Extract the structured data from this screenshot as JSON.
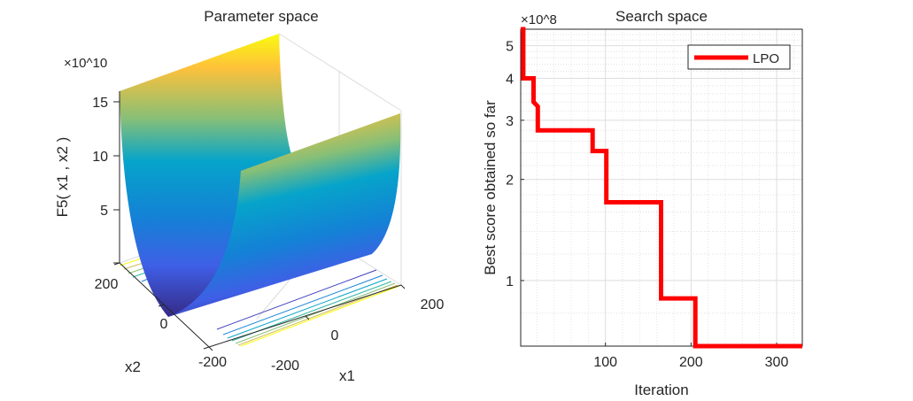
{
  "chart_data": [
    {
      "type": "surface",
      "title": "Parameter space",
      "xlabel": "x1",
      "ylabel": "x2",
      "zlabel": "F5( x1 , x2 )",
      "z_exponent": "×10^10",
      "x_ticks": [
        "-200",
        "0",
        "200"
      ],
      "y_ticks": [
        "200",
        "0",
        "-200"
      ],
      "z_ticks": [
        "15",
        "10",
        "5"
      ],
      "xlim": [
        -200,
        200
      ],
      "ylim": [
        -200,
        200
      ],
      "colormap": [
        "#352a87",
        "#0f5cdd",
        "#1481d6",
        "#06a4ca",
        "#2eb7a4",
        "#87bf77",
        "#d1bb59",
        "#fec13a",
        "#f9fb0e"
      ]
    },
    {
      "type": "line",
      "title": "Search space",
      "xlabel": "Iteration",
      "ylabel": "Best score obtained so far",
      "y_exponent": "×10^8",
      "yscale": "log",
      "xlim": [
        1,
        330
      ],
      "ylim": [
        0.638,
        5.6
      ],
      "x_ticks": [
        100,
        200,
        300
      ],
      "y_ticks": [
        1,
        2,
        3,
        4,
        5
      ],
      "grid": true,
      "legend_position": "top-right",
      "series": [
        {
          "name": "LPO",
          "color": "#ff0000",
          "x": [
            1,
            4,
            4,
            16,
            16,
            21,
            21,
            85,
            85,
            101,
            101,
            165,
            165,
            205,
            205,
            330
          ],
          "y": [
            5.6,
            5.6,
            4.0,
            4.0,
            3.4,
            3.3,
            2.8,
            2.8,
            2.43,
            2.43,
            1.71,
            1.71,
            0.885,
            0.885,
            0.638,
            0.638
          ]
        }
      ]
    }
  ]
}
